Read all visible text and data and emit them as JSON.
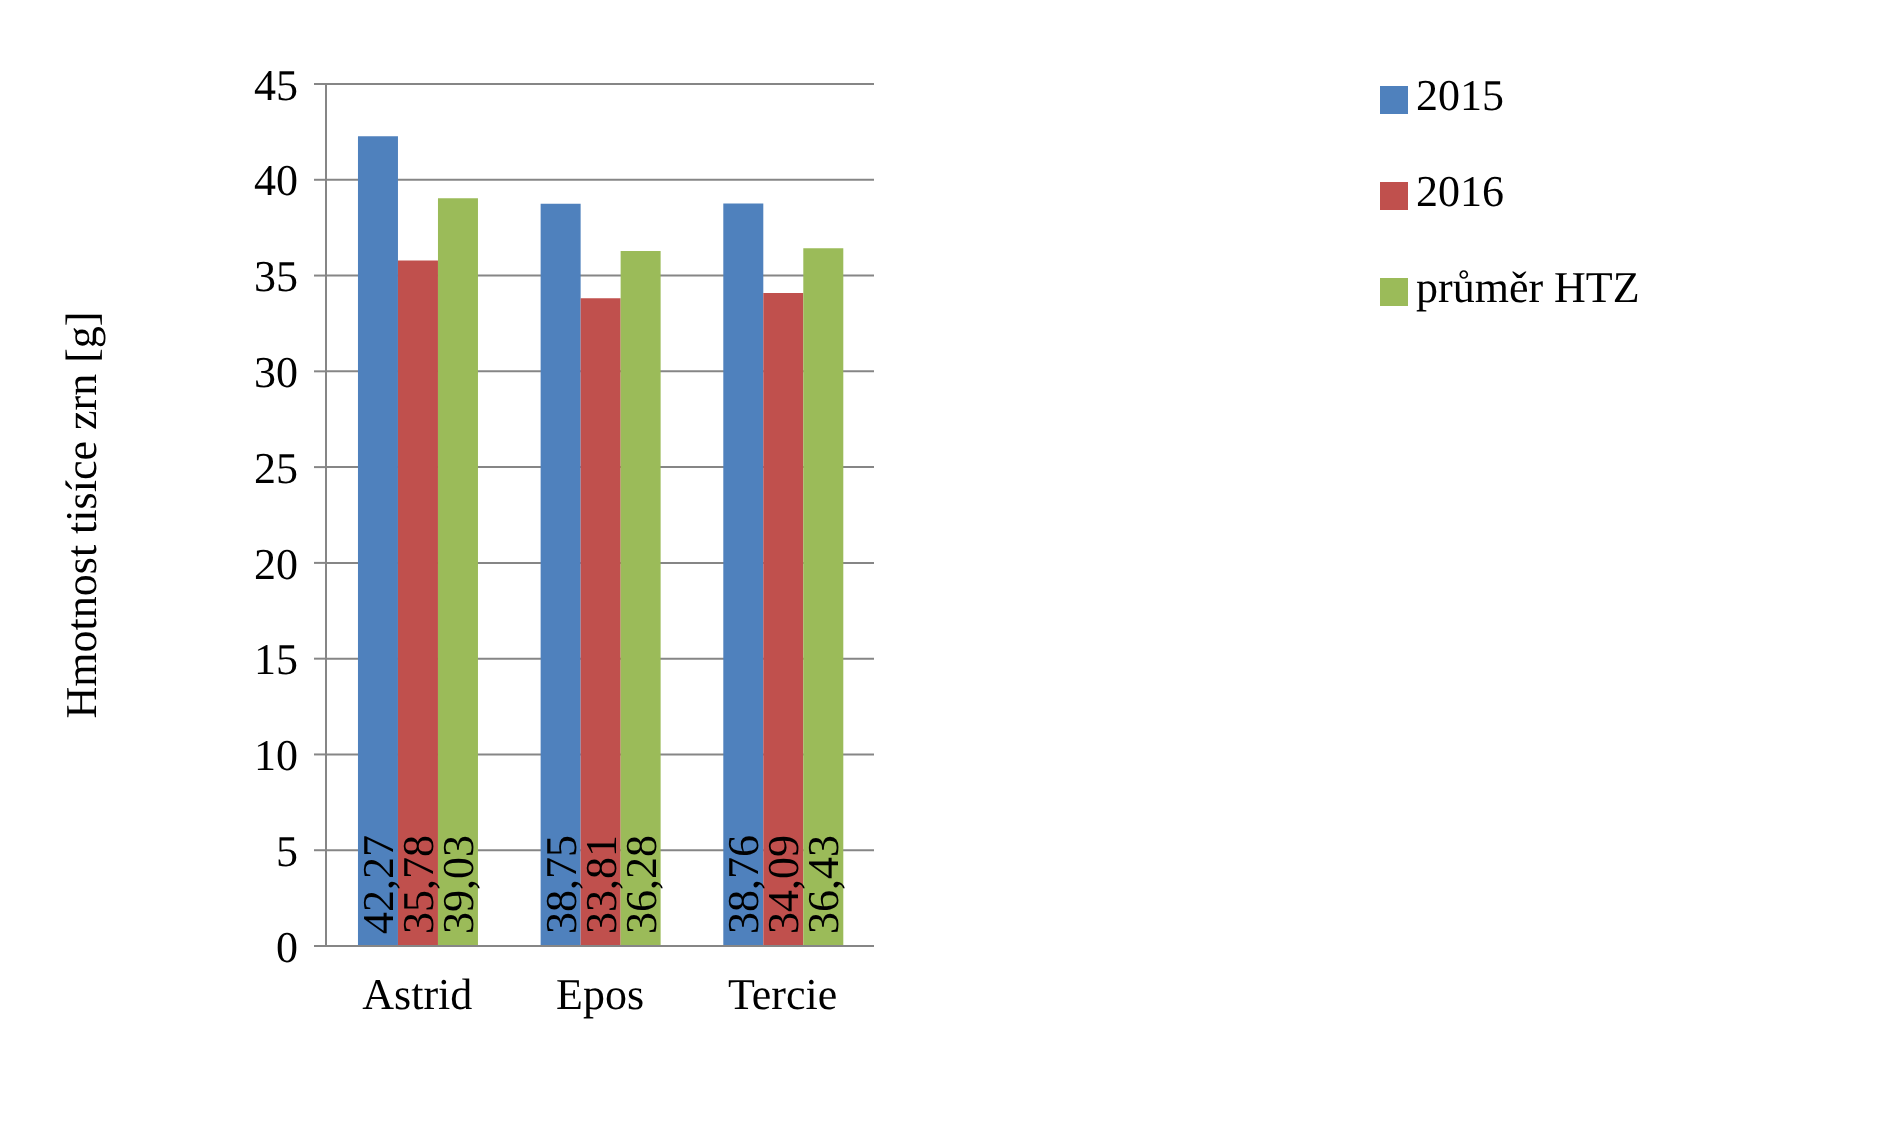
{
  "chart_data": {
    "type": "bar",
    "ylabel": "Hmotnost tisíce zrn [g]",
    "categories": [
      "Astrid",
      "Epos",
      "Tercie"
    ],
    "series": [
      {
        "name": "2015",
        "color": "#4f81bd",
        "values": [
          42.27,
          38.75,
          38.76
        ],
        "value_labels": [
          "42,27",
          "38,75",
          "38,76"
        ]
      },
      {
        "name": "2016",
        "color": "#c0504d",
        "values": [
          35.78,
          33.81,
          34.09
        ],
        "value_labels": [
          "35,78",
          "33,81",
          "34,09"
        ]
      },
      {
        "name": "průměr HTZ",
        "color": "#9bbb59",
        "values": [
          39.03,
          36.28,
          36.43
        ],
        "value_labels": [
          "39,03",
          "36,28",
          "36,43"
        ]
      }
    ],
    "ylim": [
      0,
      45
    ],
    "yticks": [
      0,
      5,
      10,
      15,
      20,
      25,
      30,
      35,
      40,
      45
    ],
    "grid": "y",
    "legend": "right"
  }
}
